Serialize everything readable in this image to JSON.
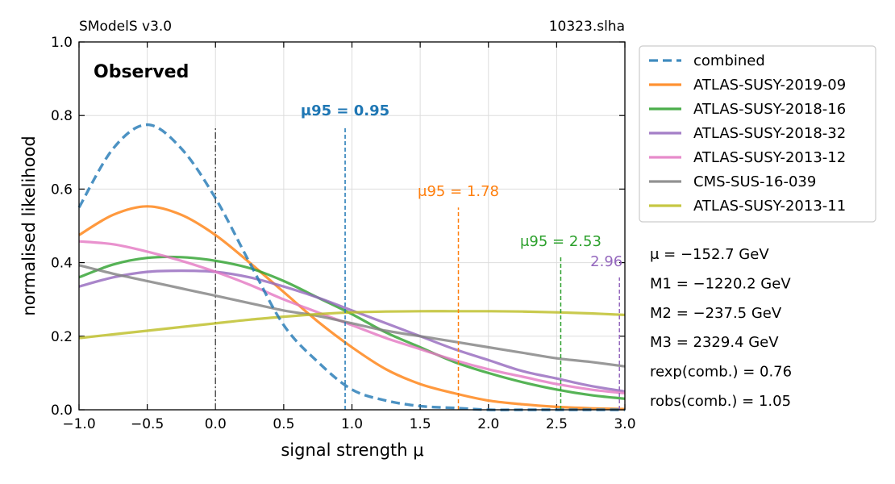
{
  "chart_data": {
    "type": "line",
    "top_left": "SModelS v3.0",
    "top_right": "10323.slha",
    "panel_label": "Observed",
    "xlabel": "signal strength μ",
    "ylabel": "normalised likelihood",
    "xlim": [
      -1.0,
      3.0
    ],
    "ylim": [
      0.0,
      1.0
    ],
    "xticks": [
      -1.0,
      -0.5,
      0.0,
      0.5,
      1.0,
      1.5,
      2.0,
      2.5,
      3.0
    ],
    "yticks": [
      0.0,
      0.2,
      0.4,
      0.6,
      0.8,
      1.0
    ],
    "xtick_labels": [
      "−1.0",
      "−0.5",
      "0.0",
      "0.5",
      "1.0",
      "1.5",
      "2.0",
      "2.5",
      "3.0"
    ],
    "ytick_labels": [
      "0.0",
      "0.2",
      "0.4",
      "0.6",
      "0.8",
      "1.0"
    ],
    "grid": true,
    "legend_position": "outside-right-top",
    "x": [
      -1.0,
      -0.75,
      -0.5,
      -0.25,
      0.0,
      0.25,
      0.5,
      0.75,
      1.0,
      1.25,
      1.5,
      1.75,
      2.0,
      2.25,
      2.5,
      2.75,
      3.0
    ],
    "series": [
      {
        "name": "combined",
        "color": "#1f77b4",
        "dash": true,
        "values": [
          0.55,
          0.71,
          0.775,
          0.71,
          0.575,
          0.4,
          0.23,
          0.13,
          0.055,
          0.025,
          0.01,
          0.005,
          0.0,
          0.0,
          0.0,
          0.0,
          0.0
        ]
      },
      {
        "name": "ATLAS-SUSY-2019-09",
        "color": "#ff7f0e",
        "values": [
          0.475,
          0.53,
          0.553,
          0.53,
          0.475,
          0.4,
          0.32,
          0.24,
          0.17,
          0.11,
          0.07,
          0.045,
          0.025,
          0.015,
          0.008,
          0.004,
          0.002
        ]
      },
      {
        "name": "ATLAS-SUSY-2018-16",
        "color": "#2ca02c",
        "values": [
          0.36,
          0.395,
          0.413,
          0.415,
          0.405,
          0.385,
          0.35,
          0.305,
          0.26,
          0.21,
          0.17,
          0.13,
          0.1,
          0.075,
          0.055,
          0.04,
          0.03
        ]
      },
      {
        "name": "ATLAS-SUSY-2018-32",
        "color": "#9467bd",
        "values": [
          0.335,
          0.36,
          0.375,
          0.378,
          0.375,
          0.36,
          0.335,
          0.305,
          0.27,
          0.235,
          0.2,
          0.165,
          0.135,
          0.105,
          0.085,
          0.065,
          0.05
        ]
      },
      {
        "name": "ATLAS-SUSY-2013-12",
        "color": "#e377c2",
        "values": [
          0.458,
          0.45,
          0.43,
          0.405,
          0.375,
          0.34,
          0.3,
          0.265,
          0.23,
          0.195,
          0.165,
          0.135,
          0.11,
          0.09,
          0.07,
          0.055,
          0.045
        ]
      },
      {
        "name": "CMS-SUS-16-039",
        "color": "#7f7f7f",
        "values": [
          0.393,
          0.37,
          0.35,
          0.33,
          0.31,
          0.29,
          0.27,
          0.255,
          0.235,
          0.215,
          0.2,
          0.185,
          0.17,
          0.155,
          0.14,
          0.13,
          0.118
        ]
      },
      {
        "name": "ATLAS-SUSY-2013-11",
        "color": "#bcbd22",
        "values": [
          0.195,
          0.205,
          0.215,
          0.225,
          0.235,
          0.245,
          0.253,
          0.26,
          0.265,
          0.267,
          0.268,
          0.268,
          0.268,
          0.267,
          0.265,
          0.262,
          0.258
        ]
      }
    ],
    "reference_line": {
      "x": 0.0,
      "ymax": 0.77,
      "color": "#555555"
    },
    "mu95_markers": [
      {
        "label": "μ95 = 0.95",
        "value_text": "μ95 = 0.95",
        "x": 0.95,
        "ymax": 0.77,
        "color": "#1f77b4",
        "bold": true
      },
      {
        "label": "μ95 = 1.78",
        "value_text": "μ95 = 1.78",
        "x": 1.78,
        "ymax": 0.55,
        "color": "#ff7f0e",
        "bold": false
      },
      {
        "label": "μ95 = 2.53",
        "value_text": "μ95 = 2.53",
        "x": 2.53,
        "ymax": 0.415,
        "color": "#2ca02c",
        "bold": false
      },
      {
        "label": "2.96",
        "value_text": "2.96",
        "x": 2.96,
        "ymax": 0.36,
        "color": "#9467bd",
        "bold": false
      }
    ],
    "info_lines": [
      "μ = −152.7 GeV",
      "M1 = −1220.2 GeV",
      "M2 = −237.5 GeV",
      "M3 = 2329.4 GeV",
      "rexp(comb.) =  0.76",
      "robs(comb.) =  1.05"
    ]
  }
}
